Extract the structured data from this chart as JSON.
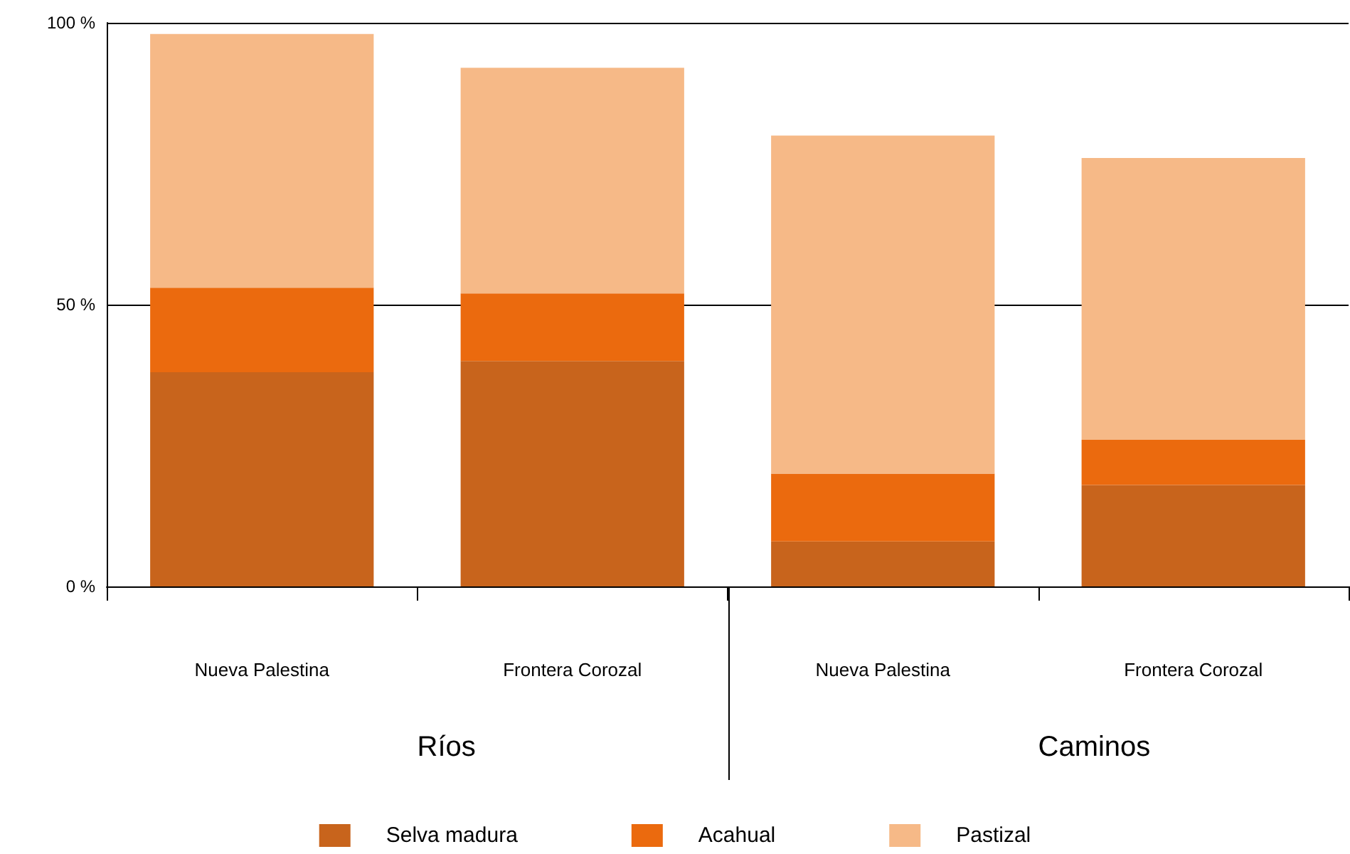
{
  "chart_data": {
    "type": "bar",
    "stacked": true,
    "categories": [
      "Nueva Palestina",
      "Frontera Corozal",
      "Nueva Palestina",
      "Frontera Corozal"
    ],
    "series": [
      {
        "name": "Selva madura",
        "color": "#c8641c",
        "values": [
          38,
          40,
          8,
          18
        ]
      },
      {
        "name": "Acahual",
        "color": "#eb6a0e",
        "values": [
          15,
          12,
          12,
          8
        ]
      },
      {
        "name": "Pastizal",
        "color": "#f6b987",
        "values": [
          45,
          40,
          60,
          50
        ]
      }
    ],
    "ylim": [
      0,
      100
    ],
    "yticks": [
      {
        "value": 0,
        "label": "0 %"
      },
      {
        "value": 50,
        "label": "50 %"
      },
      {
        "value": 100,
        "label": "100 %"
      }
    ],
    "grid": "y",
    "legend": "bottom",
    "annotations": [
      "Ríos",
      "Caminos"
    ]
  }
}
